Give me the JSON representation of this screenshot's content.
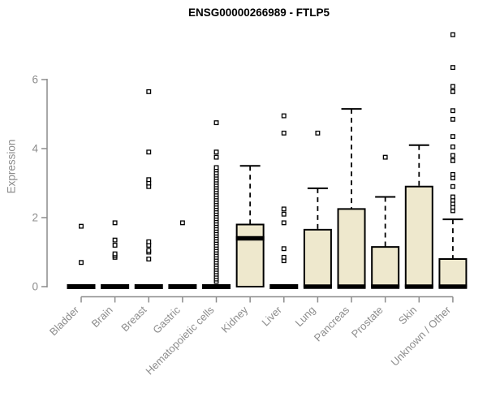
{
  "chart_data": {
    "type": "boxplot",
    "title": "ENSG00000266989 - FTLP5",
    "ylabel": "Expression",
    "xlabel": "",
    "ylim": [
      0,
      7.4
    ],
    "yticks": [
      0,
      2,
      4,
      6
    ],
    "grid": false,
    "legend_position": "none",
    "axis_color": "#8c8c8c",
    "box_fill": "#EEE8CD",
    "box_stroke": "#000000",
    "categories": [
      "Bladder",
      "Brain",
      "Breast",
      "Gastric",
      "Hematopoietic cells",
      "Kidney",
      "Liver",
      "Lung",
      "Pancreas",
      "Prostate",
      "Skin",
      "Unknown / Other"
    ],
    "boxes": [
      {
        "category": "Bladder",
        "q1": 0,
        "median": 0,
        "q3": 0,
        "whisker_low": 0,
        "whisker_high": 0,
        "outliers": [
          0.7,
          1.75
        ]
      },
      {
        "category": "Brain",
        "q1": 0,
        "median": 0,
        "q3": 0,
        "whisker_low": 0,
        "whisker_high": 0,
        "outliers": [
          0.85,
          0.9,
          0.95,
          1.2,
          1.35,
          1.85
        ]
      },
      {
        "category": "Breast",
        "q1": 0,
        "median": 0,
        "q3": 0,
        "whisker_low": 0,
        "whisker_high": 0,
        "outliers": [
          0.8,
          1.0,
          1.05,
          1.2,
          1.3,
          2.9,
          3.0,
          3.1,
          3.9,
          5.65
        ]
      },
      {
        "category": "Gastric",
        "q1": 0,
        "median": 0,
        "q3": 0,
        "whisker_low": 0,
        "whisker_high": 0,
        "outliers": [
          1.85
        ]
      },
      {
        "category": "Hematopoietic cells",
        "q1": 0,
        "median": 0,
        "q3": 0,
        "whisker_low": 0,
        "whisker_high": 0,
        "outliers": [
          0.15,
          0.22,
          0.29,
          0.36,
          0.43,
          0.5,
          0.57,
          0.64,
          0.71,
          0.78,
          0.85,
          0.92,
          0.99,
          1.06,
          1.13,
          1.2,
          1.27,
          1.34,
          1.41,
          1.48,
          1.55,
          1.62,
          1.69,
          1.76,
          1.83,
          1.9,
          1.97,
          2.04,
          2.11,
          2.18,
          2.25,
          2.32,
          2.39,
          2.46,
          2.53,
          2.6,
          2.67,
          2.74,
          2.81,
          2.88,
          2.95,
          3.02,
          3.09,
          3.16,
          3.23,
          3.3,
          3.38,
          3.45,
          3.75,
          3.9,
          4.75
        ]
      },
      {
        "category": "Kidney",
        "q1": 0,
        "median": 1.4,
        "q3": 1.8,
        "whisker_low": 0,
        "whisker_high": 3.5,
        "outliers": []
      },
      {
        "category": "Liver",
        "q1": 0,
        "median": 0,
        "q3": 0,
        "whisker_low": 0,
        "whisker_high": 0,
        "outliers": [
          0.75,
          0.85,
          1.1,
          1.85,
          2.1,
          2.25,
          4.45,
          4.95
        ]
      },
      {
        "category": "Lung",
        "q1": 0,
        "median": 0,
        "q3": 1.65,
        "whisker_low": 0,
        "whisker_high": 2.85,
        "outliers": [
          4.45
        ]
      },
      {
        "category": "Pancreas",
        "q1": 0,
        "median": 0,
        "q3": 2.25,
        "whisker_low": 0,
        "whisker_high": 5.15,
        "outliers": []
      },
      {
        "category": "Prostate",
        "q1": 0,
        "median": 0,
        "q3": 1.15,
        "whisker_low": 0,
        "whisker_high": 2.6,
        "outliers": [
          3.75
        ]
      },
      {
        "category": "Skin",
        "q1": 0,
        "median": 0,
        "q3": 2.9,
        "whisker_low": 0,
        "whisker_high": 4.1,
        "outliers": []
      },
      {
        "category": "Unknown / Other",
        "q1": 0,
        "median": 0,
        "q3": 0.8,
        "whisker_low": 0,
        "whisker_high": 1.95,
        "outliers": [
          2.2,
          2.3,
          2.4,
          2.5,
          2.6,
          2.9,
          3.15,
          3.25,
          3.65,
          3.8,
          4.05,
          4.35,
          4.85,
          5.1,
          5.65,
          5.8,
          6.35,
          7.3
        ]
      }
    ]
  }
}
